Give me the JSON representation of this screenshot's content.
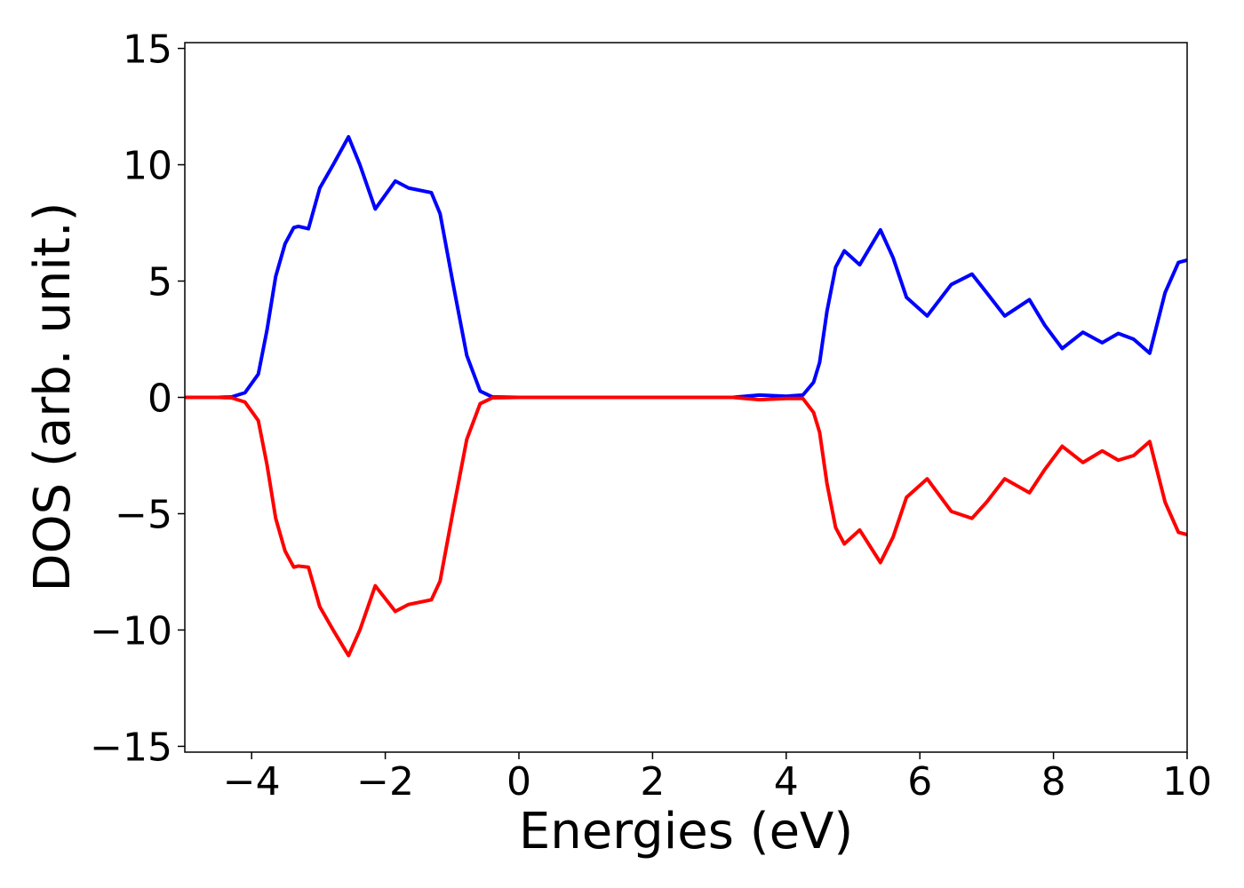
{
  "chart_data": {
    "type": "line",
    "xlabel": "Energies (eV)",
    "ylabel": "DOS (arb. unit.)",
    "x": [
      -5,
      -4.5,
      -4.3,
      -4.1,
      -3.9,
      -3.77,
      -3.64,
      -3.5,
      -3.37,
      -3.3,
      -3.15,
      -2.98,
      -2.78,
      -2.55,
      -2.38,
      -2.15,
      -1.85,
      -1.65,
      -1.31,
      -1.18,
      -0.98,
      -0.78,
      -0.58,
      -0.4,
      0,
      2,
      3.2,
      3.6,
      4.0,
      4.25,
      4.41,
      4.5,
      4.61,
      4.74,
      4.87,
      5.1,
      5.41,
      5.6,
      5.8,
      6.11,
      6.47,
      6.78,
      7.0,
      7.27,
      7.64,
      7.87,
      8.13,
      8.44,
      8.73,
      8.97,
      9.2,
      9.44,
      9.67,
      9.87,
      10
    ],
    "series": [
      {
        "color": "#0000ff",
        "values": [
          0,
          0,
          0.02,
          0.2,
          1.0,
          2.9,
          5.2,
          6.6,
          7.3,
          7.35,
          7.25,
          9.0,
          10.0,
          11.2,
          10.0,
          8.1,
          9.3,
          9.0,
          8.8,
          7.9,
          4.8,
          1.8,
          0.27,
          0.02,
          0,
          0,
          0,
          0.1,
          0.05,
          0.1,
          0.65,
          1.5,
          3.7,
          5.6,
          6.3,
          5.7,
          7.2,
          6.0,
          4.3,
          3.5,
          4.85,
          5.3,
          4.5,
          3.5,
          4.2,
          3.1,
          2.1,
          2.8,
          2.35,
          2.75,
          2.5,
          1.9,
          4.5,
          5.8,
          5.9
        ]
      },
      {
        "color": "#ff0000",
        "values": [
          0,
          0,
          -0.02,
          -0.2,
          -1.0,
          -2.9,
          -5.2,
          -6.6,
          -7.3,
          -7.25,
          -7.3,
          -9.0,
          -10.0,
          -11.1,
          -10.0,
          -8.1,
          -9.2,
          -8.9,
          -8.7,
          -7.9,
          -4.8,
          -1.8,
          -0.27,
          -0.02,
          0,
          0,
          0,
          -0.1,
          -0.05,
          -0.05,
          -0.65,
          -1.5,
          -3.7,
          -5.6,
          -6.3,
          -5.7,
          -7.1,
          -6.0,
          -4.3,
          -3.5,
          -4.9,
          -5.2,
          -4.5,
          -3.5,
          -4.1,
          -3.1,
          -2.1,
          -2.8,
          -2.3,
          -2.7,
          -2.5,
          -1.9,
          -4.5,
          -5.8,
          -5.9
        ]
      }
    ],
    "xlim": [
      -5,
      10
    ],
    "xticks": [
      {
        "value": -4,
        "label": "−4"
      },
      {
        "value": -2,
        "label": "−2"
      },
      0,
      2,
      4,
      6,
      8,
      10
    ],
    "ylim": [
      -15.25,
      15.25
    ],
    "yticks": [
      {
        "value": -15,
        "label": "−15"
      },
      {
        "value": -10,
        "label": "−10"
      },
      {
        "value": -5,
        "label": "−5"
      },
      0,
      5,
      10,
      15
    ]
  }
}
